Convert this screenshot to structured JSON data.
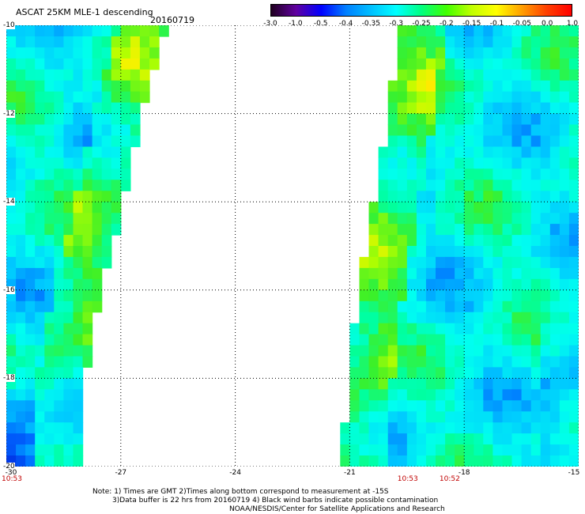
{
  "header": {
    "title": "ASCAT 25KM MLE-1 descending",
    "date": "20160719"
  },
  "colorbar": {
    "labels": [
      "-3.0",
      "-1.0",
      "-0.5",
      "-0.4",
      "-0.35",
      "-0.3",
      "-0.25",
      "-0.2",
      "-0.15",
      "-0.1",
      "-0.05",
      "0.0",
      "1.0"
    ],
    "stops": [
      "#200020",
      "#6000a0",
      "#0000ff",
      "#0080ff",
      "#00c0ff",
      "#00ffff",
      "#00ff80",
      "#40ff00",
      "#c0ff00",
      "#ffff00",
      "#ffa000",
      "#ff4000",
      "#ff0000"
    ]
  },
  "map": {
    "lat_labels": [
      "-10",
      "-12",
      "-14",
      "-16",
      "-18",
      "-20"
    ],
    "lat_values": [
      -10,
      -12,
      -14,
      -16,
      -18,
      -20
    ],
    "lon_labels": [
      "-30",
      "-27",
      "-24",
      "-21",
      "-18",
      "-15"
    ],
    "lon_values": [
      -30,
      -27,
      -24,
      -21,
      -18,
      -15
    ],
    "lon_range": [
      -30,
      -15
    ],
    "lat_range": [
      -10,
      -20
    ],
    "times": [
      {
        "label": "10:53",
        "lon": -30.0
      },
      {
        "label": "10:53",
        "lon": -19.5
      },
      {
        "label": "10:52",
        "lon": -18.4
      }
    ],
    "swaths": [
      {
        "name": "west",
        "lon_west": -30,
        "edge": [
          [
            -10.0,
            -25.7
          ],
          [
            -12.0,
            -26.3
          ],
          [
            -14.0,
            -26.8
          ],
          [
            -16.0,
            -27.4
          ],
          [
            -18.0,
            -27.8
          ],
          [
            -20.0,
            -28.0
          ]
        ]
      },
      {
        "name": "east",
        "lon_east": -15,
        "edge": [
          [
            -10.0,
            -19.8
          ],
          [
            -12.0,
            -20.1
          ],
          [
            -14.0,
            -20.5
          ],
          [
            -16.0,
            -20.9
          ],
          [
            -18.0,
            -21.2
          ],
          [
            -20.0,
            -21.3
          ]
        ]
      }
    ]
  },
  "notes": {
    "line1": "Note: 1) Times are GMT 2)Times along bottom correspond to measurement at -15S",
    "line2": "3)Data buffer is 22 hrs from 20160719 4) Black wind barbs indicate possible contamination",
    "line3": "NOAA/NESDIS/Center for Satellite Applications and Research"
  }
}
